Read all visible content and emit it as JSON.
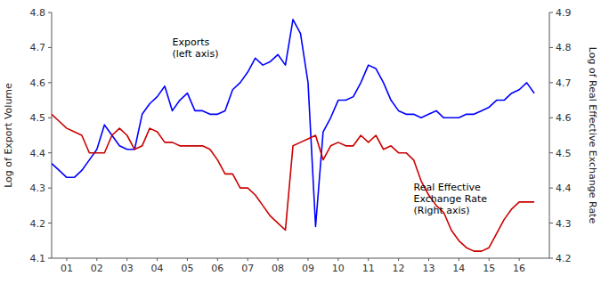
{
  "chart_data": {
    "type": "line",
    "x": [
      2000,
      2000.25,
      2000.5,
      2000.75,
      2001,
      2001.25,
      2001.5,
      2001.75,
      2002,
      2002.25,
      2002.5,
      2002.75,
      2003,
      2003.25,
      2003.5,
      2003.75,
      2004,
      2004.25,
      2004.5,
      2004.75,
      2005,
      2005.25,
      2005.5,
      2005.75,
      2006,
      2006.25,
      2006.5,
      2006.75,
      2007,
      2007.25,
      2007.5,
      2007.75,
      2008,
      2008.25,
      2008.5,
      2008.75,
      2009,
      2009.25,
      2009.5,
      2009.75,
      2010,
      2010.25,
      2010.5,
      2010.75,
      2011,
      2011.25,
      2011.5,
      2011.75,
      2012,
      2012.25,
      2012.5,
      2012.75,
      2013,
      2013.25,
      2013.5,
      2013.75,
      2014,
      2014.25,
      2014.5,
      2014.75,
      2015,
      2015.25,
      2015.5,
      2015.75,
      2016
    ],
    "series": [
      {
        "color": "#0000FF",
        "values": [
          4.37,
          4.35,
          4.33,
          4.33,
          4.35,
          4.38,
          4.41,
          4.48,
          4.45,
          4.42,
          4.41,
          4.41,
          4.51,
          4.54,
          4.56,
          4.59,
          4.52,
          4.55,
          4.57,
          4.52,
          4.52,
          4.51,
          4.51,
          4.52,
          4.58,
          4.6,
          4.63,
          4.67,
          4.65,
          4.66,
          4.68,
          4.65,
          4.78,
          4.74,
          4.6,
          4.19,
          4.46,
          4.5,
          4.55,
          4.55,
          4.56,
          4.6,
          4.65,
          4.64,
          4.6,
          4.55,
          4.52,
          4.51,
          4.51,
          4.5,
          4.51,
          4.52,
          4.5,
          4.5,
          4.5,
          4.51,
          4.51,
          4.52,
          4.53,
          4.55,
          4.55,
          4.57,
          4.58,
          4.6,
          4.57
        ]
      },
      {
        "color": "#CC0000",
        "axis": "y2",
        "values": [
          4.61,
          4.59,
          4.57,
          4.56,
          4.55,
          4.5,
          4.5,
          4.5,
          4.55,
          4.57,
          4.55,
          4.51,
          4.52,
          4.57,
          4.56,
          4.53,
          4.53,
          4.52,
          4.52,
          4.52,
          4.52,
          4.51,
          4.48,
          4.44,
          4.44,
          4.4,
          4.4,
          4.38,
          4.35,
          4.32,
          4.3,
          4.28,
          4.52,
          4.53,
          4.54,
          4.55,
          4.48,
          4.52,
          4.53,
          4.52,
          4.52,
          4.55,
          4.53,
          4.55,
          4.51,
          4.52,
          4.5,
          4.5,
          4.48,
          4.42,
          4.38,
          4.35,
          4.33,
          4.28,
          4.25,
          4.23,
          4.22,
          4.22,
          4.23,
          4.27,
          4.31,
          4.34,
          4.36,
          4.36,
          4.36
        ]
      }
    ],
    "xlim": [
      2000.0,
      2016.5
    ],
    "xticks": [
      {
        "value": 2000.5,
        "label": "01"
      },
      {
        "value": 2001.5,
        "label": "02"
      },
      {
        "value": 2002.5,
        "label": "03"
      },
      {
        "value": 2003.5,
        "label": "04"
      },
      {
        "value": 2004.5,
        "label": "05"
      },
      {
        "value": 2005.5,
        "label": "06"
      },
      {
        "value": 2006.5,
        "label": "07"
      },
      {
        "value": 2007.5,
        "label": "08"
      },
      {
        "value": 2008.5,
        "label": "09"
      },
      {
        "value": 2009.5,
        "label": "10"
      },
      {
        "value": 2010.5,
        "label": "11"
      },
      {
        "value": 2011.5,
        "label": "12"
      },
      {
        "value": 2012.5,
        "label": "13"
      },
      {
        "value": 2013.5,
        "label": "14"
      },
      {
        "value": 2014.5,
        "label": "15"
      },
      {
        "value": 2015.5,
        "label": "16"
      }
    ],
    "ylim": [
      4.1,
      4.8
    ],
    "yticks": [
      4.1,
      4.2,
      4.3,
      4.4,
      4.5,
      4.6,
      4.7,
      4.8
    ],
    "y2lim": [
      4.2,
      4.9
    ],
    "y2ticks": [
      4.2,
      4.3,
      4.4,
      4.5,
      4.6,
      4.7,
      4.8,
      4.9
    ],
    "y_label": "Log of Export Volume",
    "y2_label": "Log of Real Effective Exchange Rate",
    "annotations": [
      {
        "text": "Exports\n(left axis)",
        "x": 2004.0,
        "y": 4.7
      },
      {
        "text": "Real Effective\nExchange Rate\n(Right axis)",
        "x": 2012.0,
        "y": 4.27
      }
    ],
    "grid": false
  }
}
